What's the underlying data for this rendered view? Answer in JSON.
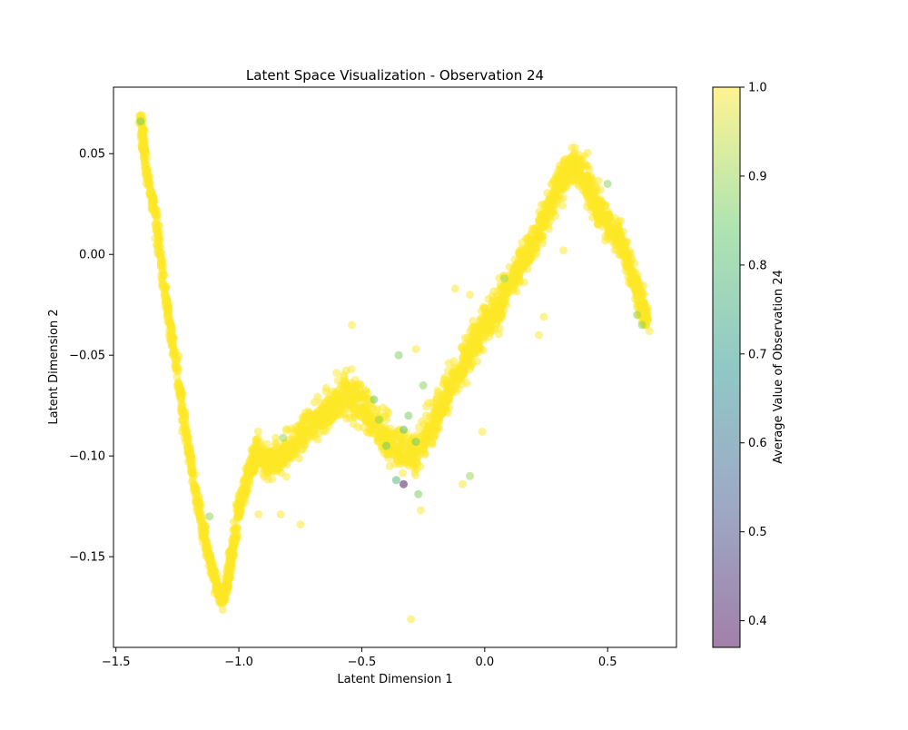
{
  "chart_data": {
    "type": "scatter",
    "title": "Latent Space Visualization - Observation 24",
    "xlabel": "Latent Dimension 1",
    "ylabel": "Latent Dimension 2",
    "xlim": [
      -1.51,
      0.78
    ],
    "ylim": [
      -0.195,
      0.083
    ],
    "x_ticks": [
      -1.5,
      -1.0,
      -0.5,
      0.0,
      0.5
    ],
    "x_tick_labels": [
      "−1.5",
      "−1.0",
      "−0.5",
      "0.0",
      "0.5"
    ],
    "y_ticks": [
      0.05,
      0.0,
      -0.05,
      -0.1,
      -0.15
    ],
    "y_tick_labels": [
      "0.05",
      "0.00",
      "−0.05",
      "−0.10",
      "−0.15"
    ],
    "colorbar": {
      "label": "Average Value of Observation 24",
      "range": [
        0.37,
        1.0
      ],
      "ticks": [
        1.0,
        0.9,
        0.8,
        0.7,
        0.6,
        0.5,
        0.4
      ],
      "tick_labels": [
        "1.0",
        "0.9",
        "0.8",
        "0.7",
        "0.6",
        "0.5",
        "0.4"
      ],
      "colormap": "viridis",
      "alpha": 0.5
    },
    "curve": [
      [
        -1.4,
        0.068,
        0.003
      ],
      [
        -1.38,
        0.045,
        0.004
      ],
      [
        -1.34,
        0.02,
        0.004
      ],
      [
        -1.3,
        -0.02,
        0.004
      ],
      [
        -1.26,
        -0.05,
        0.004
      ],
      [
        -1.22,
        -0.085,
        0.004
      ],
      [
        -1.18,
        -0.115,
        0.004
      ],
      [
        -1.14,
        -0.14,
        0.004
      ],
      [
        -1.1,
        -0.16,
        0.005
      ],
      [
        -1.07,
        -0.172,
        0.006
      ],
      [
        -1.05,
        -0.165,
        0.006
      ],
      [
        -1.03,
        -0.15,
        0.007
      ],
      [
        -1.0,
        -0.125,
        0.007
      ],
      [
        -0.96,
        -0.108,
        0.009
      ],
      [
        -0.92,
        -0.098,
        0.011
      ],
      [
        -0.87,
        -0.104,
        0.012
      ],
      [
        -0.82,
        -0.1,
        0.013
      ],
      [
        -0.76,
        -0.092,
        0.013
      ],
      [
        -0.7,
        -0.083,
        0.014
      ],
      [
        -0.64,
        -0.078,
        0.015
      ],
      [
        -0.58,
        -0.07,
        0.016
      ],
      [
        -0.52,
        -0.072,
        0.016
      ],
      [
        -0.46,
        -0.082,
        0.015
      ],
      [
        -0.4,
        -0.09,
        0.015
      ],
      [
        -0.34,
        -0.098,
        0.015
      ],
      [
        -0.28,
        -0.1,
        0.016
      ],
      [
        -0.22,
        -0.085,
        0.015
      ],
      [
        -0.16,
        -0.07,
        0.015
      ],
      [
        -0.1,
        -0.058,
        0.014
      ],
      [
        -0.05,
        -0.045,
        0.014
      ],
      [
        0.0,
        -0.035,
        0.014
      ],
      [
        0.05,
        -0.027,
        0.014
      ],
      [
        0.1,
        -0.015,
        0.013
      ],
      [
        0.15,
        -0.005,
        0.013
      ],
      [
        0.2,
        0.005,
        0.013
      ],
      [
        0.25,
        0.02,
        0.013
      ],
      [
        0.3,
        0.035,
        0.014
      ],
      [
        0.35,
        0.045,
        0.015
      ],
      [
        0.4,
        0.04,
        0.016
      ],
      [
        0.45,
        0.025,
        0.016
      ],
      [
        0.5,
        0.015,
        0.015
      ],
      [
        0.55,
        0.008,
        0.013
      ],
      [
        0.6,
        -0.01,
        0.011
      ],
      [
        0.64,
        -0.025,
        0.009
      ],
      [
        0.66,
        -0.034,
        0.006
      ]
    ],
    "highlight_points": [
      {
        "x": -0.45,
        "y": -0.072,
        "v": 0.85
      },
      {
        "x": -0.43,
        "y": -0.082,
        "v": 0.88
      },
      {
        "x": -0.35,
        "y": -0.05,
        "v": 0.87
      },
      {
        "x": -0.33,
        "y": -0.087,
        "v": 0.8
      },
      {
        "x": -0.31,
        "y": -0.08,
        "v": 0.86
      },
      {
        "x": -0.28,
        "y": -0.093,
        "v": 0.84
      },
      {
        "x": -0.27,
        "y": -0.119,
        "v": 0.86
      },
      {
        "x": -0.36,
        "y": -0.112,
        "v": 0.78
      },
      {
        "x": -0.33,
        "y": -0.114,
        "v": 0.38
      },
      {
        "x": -0.06,
        "y": -0.11,
        "v": 0.9
      },
      {
        "x": 0.08,
        "y": -0.012,
        "v": 0.9
      },
      {
        "x": 0.5,
        "y": 0.035,
        "v": 0.88
      },
      {
        "x": 0.62,
        "y": -0.03,
        "v": 0.9
      },
      {
        "x": 0.64,
        "y": -0.035,
        "v": 0.88
      },
      {
        "x": -1.12,
        "y": -0.13,
        "v": 0.88
      },
      {
        "x": -1.4,
        "y": 0.066,
        "v": 0.86
      },
      {
        "x": -0.82,
        "y": -0.091,
        "v": 0.9
      },
      {
        "x": -0.25,
        "y": -0.065,
        "v": 0.88
      },
      {
        "x": -0.4,
        "y": -0.095,
        "v": 0.85
      }
    ],
    "outlier_points": [
      {
        "x": -0.3,
        "y": -0.181,
        "v": 1.0
      },
      {
        "x": -0.83,
        "y": -0.129,
        "v": 1.0
      },
      {
        "x": -0.75,
        "y": -0.134,
        "v": 1.0
      },
      {
        "x": -0.54,
        "y": -0.035,
        "v": 1.0
      },
      {
        "x": -0.28,
        "y": -0.047,
        "v": 1.0
      },
      {
        "x": -0.26,
        "y": -0.127,
        "v": 1.0
      },
      {
        "x": 0.24,
        "y": -0.031,
        "v": 1.0
      },
      {
        "x": 0.22,
        "y": -0.04,
        "v": 1.0
      },
      {
        "x": -0.92,
        "y": -0.129,
        "v": 1.0
      },
      {
        "x": -0.06,
        "y": -0.02,
        "v": 1.0
      },
      {
        "x": -0.12,
        "y": -0.017,
        "v": 1.0
      },
      {
        "x": 0.32,
        "y": 0.002,
        "v": 1.0
      },
      {
        "x": 0.67,
        "y": -0.038,
        "v": 1.0
      },
      {
        "x": -0.01,
        "y": -0.088,
        "v": 1.0
      },
      {
        "x": -0.09,
        "y": -0.114,
        "v": 1.0
      }
    ]
  }
}
